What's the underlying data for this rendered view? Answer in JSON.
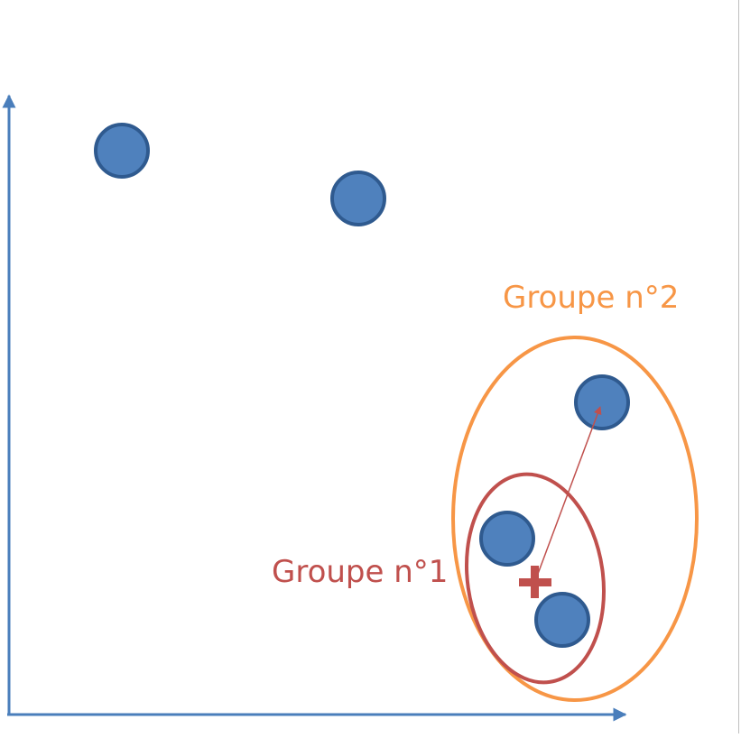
{
  "labels": {
    "group1": "Groupe n°1",
    "group2": "Groupe n°2"
  },
  "colors": {
    "axis": "#4a7ebb",
    "point_fill": "#4f81bd",
    "point_stroke": "#2f5a8f",
    "group1": "#c0504d",
    "group2": "#f79646",
    "background": "#ffffff"
  },
  "icons": {
    "centroid": "plus-marker",
    "link": "arrow"
  }
}
